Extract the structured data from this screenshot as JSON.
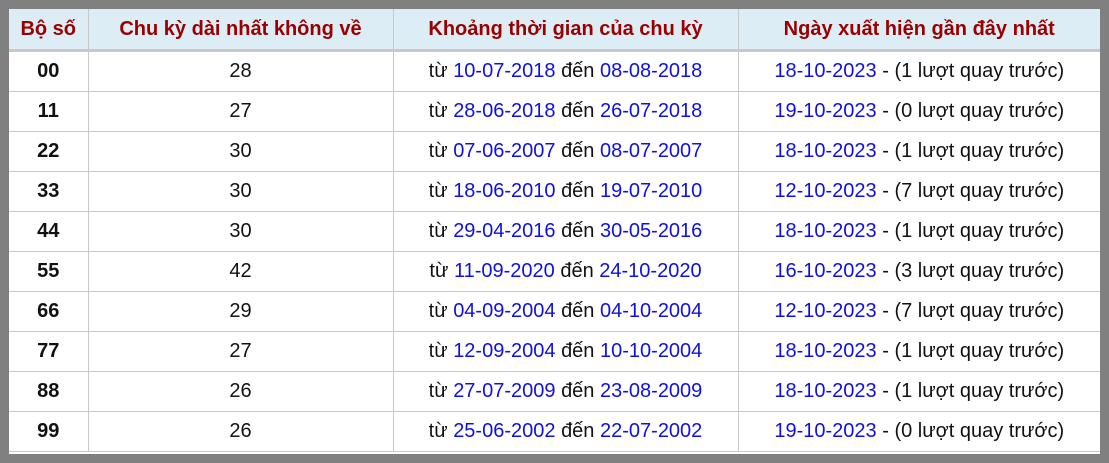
{
  "headers": [
    "Bộ số",
    "Chu kỳ dài nhất không về",
    "Khoảng thời gian của chu kỳ",
    "Ngày xuất hiện gần đây nhất"
  ],
  "labels": {
    "from": "từ",
    "to": "đến",
    "sep": " - "
  },
  "rows": [
    {
      "pair": "00",
      "cycle": "28",
      "start": "10-07-2018",
      "end": "08-08-2018",
      "last": "18-10-2023",
      "note": "(1 lượt quay trước)"
    },
    {
      "pair": "11",
      "cycle": "27",
      "start": "28-06-2018",
      "end": "26-07-2018",
      "last": "19-10-2023",
      "note": "(0 lượt quay trước)"
    },
    {
      "pair": "22",
      "cycle": "30",
      "start": "07-06-2007",
      "end": "08-07-2007",
      "last": "18-10-2023",
      "note": "(1 lượt quay trước)"
    },
    {
      "pair": "33",
      "cycle": "30",
      "start": "18-06-2010",
      "end": "19-07-2010",
      "last": "12-10-2023",
      "note": "(7 lượt quay trước)"
    },
    {
      "pair": "44",
      "cycle": "30",
      "start": "29-04-2016",
      "end": "30-05-2016",
      "last": "18-10-2023",
      "note": "(1 lượt quay trước)"
    },
    {
      "pair": "55",
      "cycle": "42",
      "start": "11-09-2020",
      "end": "24-10-2020",
      "last": "16-10-2023",
      "note": "(3 lượt quay trước)"
    },
    {
      "pair": "66",
      "cycle": "29",
      "start": "04-09-2004",
      "end": "04-10-2004",
      "last": "12-10-2023",
      "note": "(7 lượt quay trước)"
    },
    {
      "pair": "77",
      "cycle": "27",
      "start": "12-09-2004",
      "end": "10-10-2004",
      "last": "18-10-2023",
      "note": "(1 lượt quay trước)"
    },
    {
      "pair": "88",
      "cycle": "26",
      "start": "27-07-2009",
      "end": "23-08-2009",
      "last": "18-10-2023",
      "note": "(1 lượt quay trước)"
    },
    {
      "pair": "99",
      "cycle": "26",
      "start": "25-06-2002",
      "end": "22-07-2002",
      "last": "19-10-2023",
      "note": "(0 lượt quay trước)"
    }
  ]
}
